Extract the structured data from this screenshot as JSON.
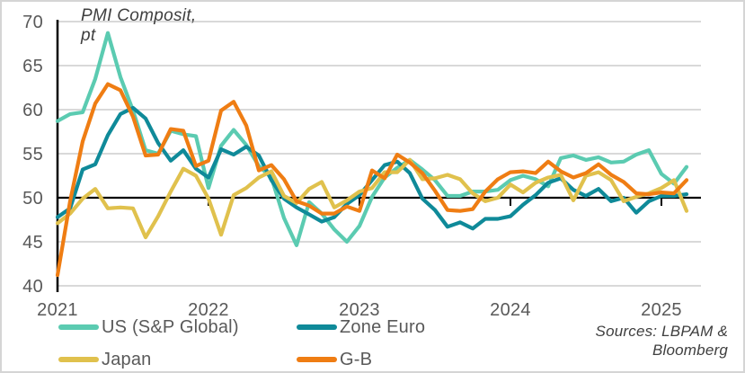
{
  "title": {
    "line1": "PMI Composit,",
    "line2": "pt"
  },
  "sources": {
    "line1": "Sources: LBPAM &",
    "line2": "Bloomberg"
  },
  "colors": {
    "grid": "#d9d9d9",
    "axis": "#000000",
    "tick_label": "#595959",
    "title_text": "#3f3f3f",
    "us": "#5bcbb1",
    "zone_euro": "#0f8a99",
    "japan": "#e0c14d",
    "gb": "#ef7d13"
  },
  "chart_data": {
    "type": "line",
    "title": "PMI Composit, pt",
    "xlabel": "",
    "ylabel": "PMI Composite, pt",
    "frequency": "monthly",
    "x_start": "2021-01",
    "x_end": "2025-03",
    "x_year_ticks": [
      "2021",
      "2022",
      "2023",
      "2024",
      "2025"
    ],
    "y_ticks": [
      70,
      65,
      60,
      55,
      50,
      45,
      40
    ],
    "ylim": [
      40,
      70
    ],
    "baseline": 50,
    "grid": true,
    "legend_position": "bottom",
    "series": [
      {
        "name": "US (S&P Global)",
        "color": "#5bcbb1",
        "values": [
          58.7,
          59.5,
          59.7,
          63.5,
          68.7,
          63.7,
          59.9,
          55.4,
          55.0,
          57.6,
          57.2,
          57.0,
          51.1,
          55.9,
          57.7,
          56.0,
          53.6,
          52.3,
          47.7,
          44.6,
          49.5,
          48.2,
          46.4,
          45.0,
          46.8,
          50.1,
          52.3,
          53.4,
          54.3,
          53.2,
          52.0,
          50.2,
          50.2,
          50.7,
          50.7,
          50.9,
          52.0,
          52.5,
          52.1,
          51.3,
          54.5,
          54.8,
          54.3,
          54.6,
          54.0,
          54.1,
          54.9,
          55.4,
          52.7,
          51.6,
          53.5
        ]
      },
      {
        "name": "Zone Euro",
        "color": "#0f8a99",
        "values": [
          47.8,
          48.8,
          53.2,
          53.8,
          57.1,
          59.5,
          60.2,
          59.0,
          56.2,
          54.2,
          55.4,
          53.3,
          52.3,
          55.5,
          54.9,
          55.8,
          54.8,
          52.0,
          49.9,
          48.9,
          48.1,
          47.3,
          47.8,
          49.3,
          50.3,
          52.0,
          53.7,
          54.1,
          52.8,
          49.9,
          48.6,
          46.7,
          47.2,
          46.5,
          47.6,
          47.6,
          47.9,
          49.2,
          50.3,
          51.7,
          52.2,
          50.9,
          50.2,
          51.0,
          49.6,
          50.0,
          48.3,
          49.6,
          50.2,
          50.2,
          50.4
        ]
      },
      {
        "name": "Japan",
        "color": "#e0c14d",
        "values": [
          47.1,
          48.2,
          49.9,
          51.0,
          48.8,
          48.9,
          48.8,
          45.5,
          47.9,
          50.7,
          53.3,
          52.5,
          49.9,
          45.8,
          50.3,
          51.1,
          52.3,
          53.0,
          50.2,
          49.4,
          51.0,
          51.8,
          48.9,
          49.7,
          50.7,
          51.1,
          52.9,
          52.9,
          54.3,
          52.1,
          52.2,
          52.6,
          52.1,
          50.5,
          49.6,
          50.0,
          51.5,
          50.6,
          51.7,
          52.3,
          52.6,
          49.7,
          52.5,
          52.9,
          52.0,
          49.6,
          50.1,
          50.5,
          51.1,
          52.0,
          48.5
        ]
      },
      {
        "name": "G-B",
        "color": "#ef7d13",
        "values": [
          41.2,
          49.6,
          56.4,
          60.7,
          62.9,
          62.2,
          59.2,
          54.8,
          54.9,
          57.8,
          57.6,
          53.6,
          54.2,
          59.9,
          60.9,
          58.2,
          53.1,
          53.7,
          52.1,
          49.6,
          49.1,
          48.2,
          48.2,
          49.0,
          48.5,
          53.1,
          52.2,
          54.9,
          54.0,
          52.8,
          50.8,
          48.6,
          48.5,
          48.7,
          50.7,
          52.1,
          52.9,
          53.0,
          52.8,
          54.1,
          53.0,
          52.3,
          52.8,
          53.8,
          52.6,
          51.8,
          50.5,
          50.4,
          50.6,
          50.5,
          52.0
        ]
      }
    ]
  }
}
